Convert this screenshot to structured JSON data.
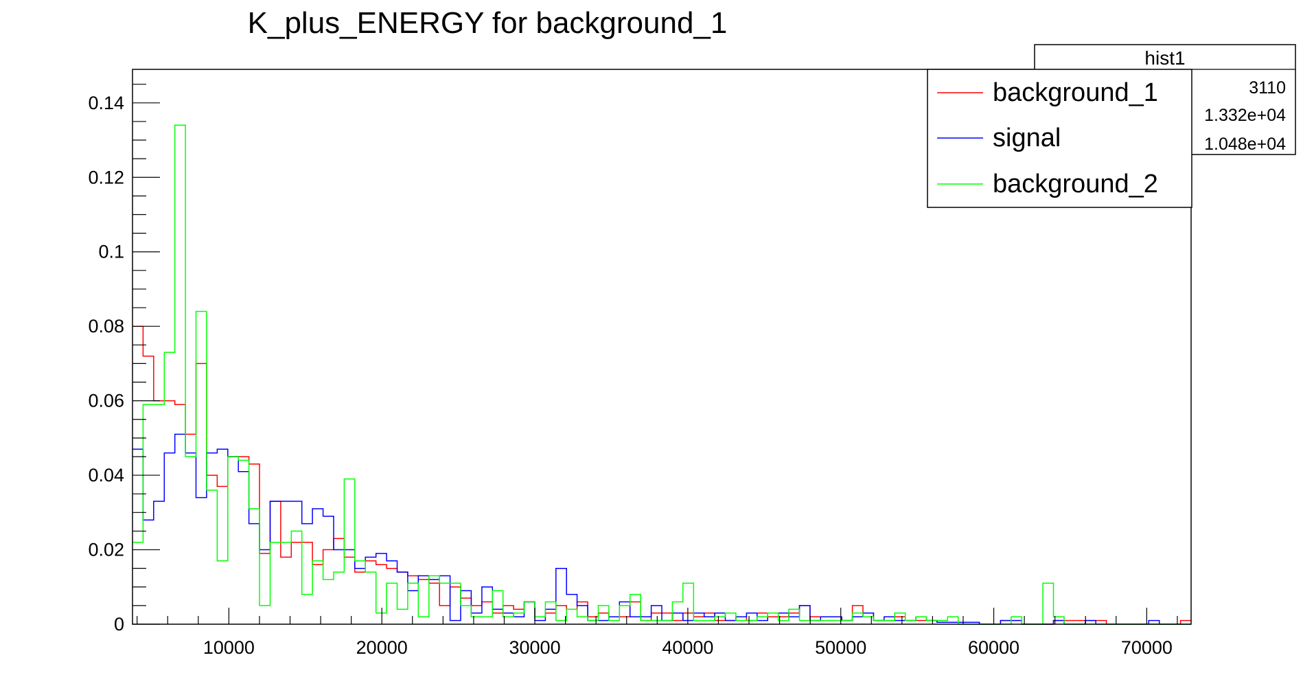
{
  "chart_data": {
    "type": "histogram-step",
    "title": "K_plus_ENERGY for background_1",
    "xlabel": "",
    "ylabel": "",
    "xlim": [
      3700,
      72900
    ],
    "ylim": [
      0,
      0.149
    ],
    "x_ticks": [
      10000,
      20000,
      30000,
      40000,
      50000,
      60000,
      70000
    ],
    "x_tick_labels": [
      "10000",
      "20000",
      "30000",
      "40000",
      "50000",
      "60000",
      "70000"
    ],
    "y_ticks": [
      0,
      0.02,
      0.04,
      0.06,
      0.08,
      0.1,
      0.12,
      0.14
    ],
    "y_tick_labels": [
      "0",
      "0.02",
      "0.04",
      "0.06",
      "0.08",
      "0.1",
      "0.12",
      "0.14"
    ],
    "bin_start": 3700,
    "bin_width": 692,
    "legend_position": "top-right",
    "stats_box": {
      "title": "hist1",
      "rows": [
        "3110",
        "1.332e+04",
        "1.048e+04"
      ]
    },
    "series": [
      {
        "name": "background_1",
        "color": "#ff0000",
        "values": [
          0.08,
          0.072,
          0.06,
          0.06,
          0.059,
          0.051,
          0.07,
          0.04,
          0.037,
          0.045,
          0.045,
          0.043,
          0.019,
          0.033,
          0.018,
          0.022,
          0.022,
          0.016,
          0.02,
          0.023,
          0.018,
          0.014,
          0.017,
          0.016,
          0.015,
          0.014,
          0.013,
          0.012,
          0.011,
          0.005,
          0.01,
          0.007,
          0.005,
          0.006,
          0.003,
          0.005,
          0.004,
          0.006,
          0.002,
          0.003,
          0.005,
          0.004,
          0.006,
          0.002,
          0.003,
          0.002,
          0.002,
          0.006,
          0.001,
          0.003,
          0.003,
          0.001,
          0.003,
          0.002,
          0.003,
          0.001,
          0.001,
          0.002,
          0.001,
          0.003,
          0.002,
          0.002,
          0.003,
          0.005,
          0.002,
          0.002,
          0.002,
          0.001,
          0.005,
          0.003,
          0.001,
          0.001,
          0.002,
          0.001,
          0.001,
          0.001,
          0.0005,
          0.0005,
          0.0005,
          0.0005,
          0,
          0,
          0.001,
          0.001,
          0,
          0,
          0,
          0.001,
          0.001,
          0.001,
          0.001,
          0.001,
          0,
          0,
          0,
          0,
          0,
          0,
          0,
          0.001
        ],
        "note_values": "visual estimates"
      },
      {
        "name": "signal",
        "color": "#0000ff",
        "values": [
          0.047,
          0.028,
          0.033,
          0.046,
          0.051,
          0.046,
          0.034,
          0.046,
          0.047,
          0.045,
          0.041,
          0.027,
          0.02,
          0.033,
          0.033,
          0.033,
          0.027,
          0.031,
          0.029,
          0.02,
          0.02,
          0.015,
          0.018,
          0.019,
          0.017,
          0.014,
          0.009,
          0.013,
          0.012,
          0.013,
          0.001,
          0.009,
          0.003,
          0.01,
          0.004,
          0.003,
          0.002,
          0.006,
          0.001,
          0.004,
          0.015,
          0.008,
          0.005,
          0.001,
          0.001,
          0.002,
          0.006,
          0.002,
          0.002,
          0.005,
          0.001,
          0.003,
          0.001,
          0.003,
          0.002,
          0.003,
          0.001,
          0.002,
          0.003,
          0.001,
          0.003,
          0.003,
          0.002,
          0.005,
          0.001,
          0.002,
          0.002,
          0.001,
          0.002,
          0.003,
          0.001,
          0.002,
          0.001,
          0.001,
          0.002,
          0.001,
          0.0005,
          0.0005,
          0.0005,
          0.0005,
          0,
          0,
          0.001,
          0.001,
          0,
          0,
          0,
          0.001,
          0,
          0,
          0.001,
          0,
          0,
          0,
          0,
          0,
          0.001,
          0,
          0,
          0
        ],
        "note_values": "visual estimates"
      },
      {
        "name": "background_2",
        "color": "#00ff00",
        "values": [
          0.022,
          0.059,
          0.059,
          0.073,
          0.134,
          0.045,
          0.084,
          0.036,
          0.017,
          0.045,
          0.044,
          0.031,
          0.005,
          0.022,
          0.022,
          0.025,
          0.008,
          0.017,
          0.012,
          0.014,
          0.039,
          0.017,
          0.014,
          0.003,
          0.011,
          0.004,
          0.011,
          0.002,
          0.013,
          0.011,
          0.011,
          0.005,
          0.002,
          0.002,
          0.009,
          0.002,
          0.003,
          0.006,
          0.002,
          0.006,
          0.001,
          0.004,
          0.002,
          0.001,
          0.005,
          0.001,
          0.005,
          0.008,
          0.001,
          0.001,
          0.001,
          0.006,
          0.011,
          0.001,
          0.001,
          0.002,
          0.003,
          0.001,
          0.001,
          0.002,
          0.003,
          0.001,
          0.004,
          0.001,
          0.001,
          0.001,
          0.001,
          0.001,
          0.003,
          0.002,
          0.001,
          0.001,
          0.003,
          0.001,
          0.002,
          0.001,
          0.001,
          0.002,
          0,
          0,
          0,
          0,
          0,
          0.002,
          0,
          0,
          0.011,
          0.002,
          0,
          0,
          0,
          0,
          0,
          0,
          0,
          0,
          0,
          0,
          0,
          0
        ],
        "note_values": "visual estimates"
      }
    ]
  }
}
